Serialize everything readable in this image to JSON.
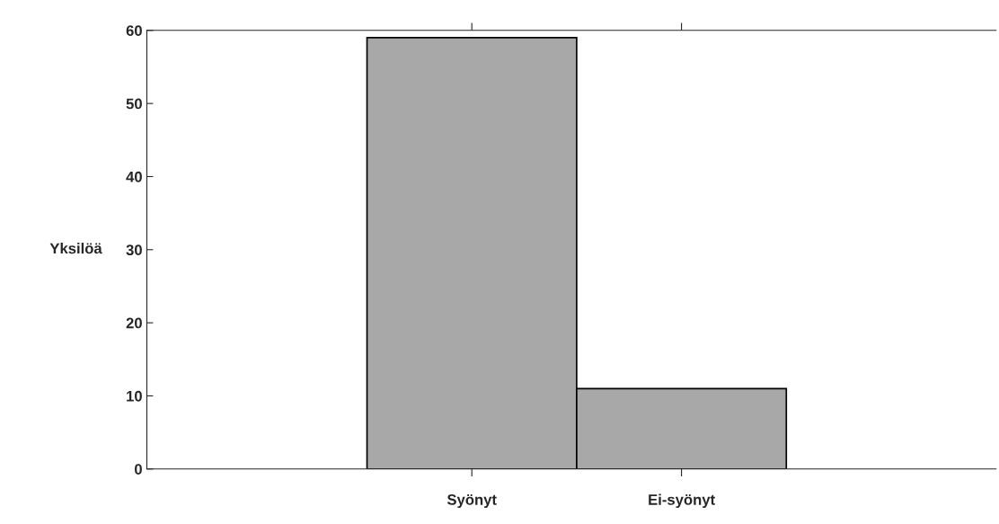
{
  "chart_data": {
    "type": "bar",
    "ylabel": "Yksilöä",
    "categories": [
      "Syönyt",
      "Ei-syönyt"
    ],
    "values": [
      59,
      11
    ],
    "color": "#a8a8a8",
    "ylim": [
      0,
      60
    ],
    "yticks": [
      0,
      10,
      20,
      30,
      40,
      50,
      60
    ],
    "grid": false
  }
}
